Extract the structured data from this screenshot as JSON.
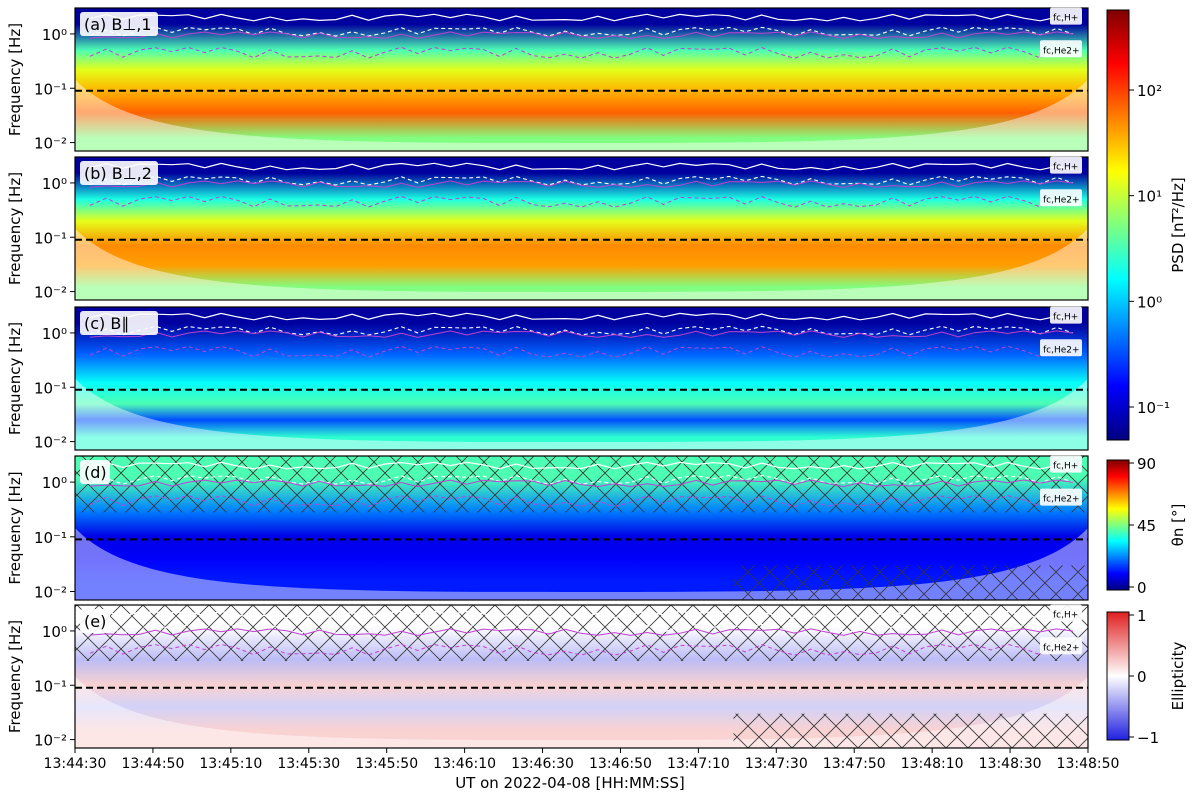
{
  "figure": {
    "xlabel": "UT on 2022-04-08 [HH:MM:SS]",
    "x_ticks": [
      "13:44:30",
      "13:44:50",
      "13:45:10",
      "13:45:30",
      "13:45:50",
      "13:46:10",
      "13:46:30",
      "13:46:50",
      "13:47:10",
      "13:47:30",
      "13:47:50",
      "13:48:10",
      "13:48:30",
      "13:48:50"
    ]
  },
  "chart_data": [
    {
      "type": "heatmap",
      "panel_label": "(a)",
      "title": "B⊥,1",
      "ylabel": "Frequency [Hz]",
      "yscale": "log",
      "ylim": [
        0.007,
        3.0
      ],
      "y_ticks": [
        "10⁰",
        "10⁻¹",
        "10⁻²"
      ],
      "y_tick_values": [
        1.0,
        0.1,
        0.01
      ],
      "xlim": [
        "13:44:30",
        "13:48:50"
      ],
      "colormap": "jet",
      "reference_line_hz": 0.09,
      "annotations": [
        "fc,H+",
        "fc,He2+"
      ],
      "intensity_bands": [
        {
          "f": 1.5,
          "v": 0.03
        },
        {
          "f": 0.5,
          "v": 0.45
        },
        {
          "f": 0.22,
          "v": 0.6
        },
        {
          "f": 0.09,
          "v": 0.7
        },
        {
          "f": 0.035,
          "v": 0.78
        },
        {
          "f": 0.012,
          "v": 0.5
        }
      ]
    },
    {
      "type": "heatmap",
      "panel_label": "(b)",
      "title": "B⊥,2",
      "ylabel": "Frequency [Hz]",
      "yscale": "log",
      "ylim": [
        0.007,
        3.0
      ],
      "y_ticks": [
        "10⁰",
        "10⁻¹",
        "10⁻²"
      ],
      "y_tick_values": [
        1.0,
        0.1,
        0.01
      ],
      "xlim": [
        "13:44:30",
        "13:48:50"
      ],
      "colormap": "jet",
      "reference_line_hz": 0.09,
      "annotations": [
        "fc,H+",
        "fc,He2+"
      ],
      "intensity_bands": [
        {
          "f": 1.5,
          "v": 0.03
        },
        {
          "f": 0.5,
          "v": 0.4
        },
        {
          "f": 0.2,
          "v": 0.6
        },
        {
          "f": 0.07,
          "v": 0.74
        },
        {
          "f": 0.03,
          "v": 0.72
        },
        {
          "f": 0.012,
          "v": 0.5
        }
      ]
    },
    {
      "type": "heatmap",
      "panel_label": "(c)",
      "title": "B∥",
      "ylabel": "Frequency [Hz]",
      "yscale": "log",
      "ylim": [
        0.007,
        3.0
      ],
      "y_ticks": [
        "10⁰",
        "10⁻¹",
        "10⁻²"
      ],
      "y_tick_values": [
        1.0,
        0.1,
        0.01
      ],
      "xlim": [
        "13:44:30",
        "13:48:50"
      ],
      "colormap": "jet",
      "reference_line_hz": 0.09,
      "annotations": [
        "fc,H+",
        "fc,He2+"
      ],
      "intensity_bands": [
        {
          "f": 1.5,
          "v": 0.03
        },
        {
          "f": 0.4,
          "v": 0.22
        },
        {
          "f": 0.12,
          "v": 0.38
        },
        {
          "f": 0.05,
          "v": 0.45
        },
        {
          "f": 0.025,
          "v": 0.2
        },
        {
          "f": 0.012,
          "v": 0.42
        }
      ]
    },
    {
      "type": "heatmap",
      "panel_label": "(d)",
      "ylabel": "Frequency [Hz]",
      "yscale": "log",
      "ylim": [
        0.007,
        3.0
      ],
      "y_ticks": [
        "10⁰",
        "10⁻¹",
        "10⁻²"
      ],
      "y_tick_values": [
        1.0,
        0.1,
        0.01
      ],
      "xlim": [
        "13:44:30",
        "13:48:50"
      ],
      "colormap": "jet",
      "reference_line_hz": 0.09,
      "annotations": [
        "fc,H+",
        "fc,He2+"
      ],
      "hatched_regions": true,
      "intensity_bands": [
        {
          "f": 1.2,
          "v": 0.45
        },
        {
          "f": 0.3,
          "v": 0.25
        },
        {
          "f": 0.1,
          "v": 0.1
        },
        {
          "f": 0.04,
          "v": 0.12
        },
        {
          "f": 0.015,
          "v": 0.15
        }
      ]
    },
    {
      "type": "heatmap",
      "panel_label": "(e)",
      "ylabel": "Frequency [Hz]",
      "yscale": "log",
      "ylim": [
        0.007,
        3.0
      ],
      "y_ticks": [
        "10⁰",
        "10⁻¹",
        "10⁻²"
      ],
      "y_tick_values": [
        1.0,
        0.1,
        0.01
      ],
      "xlim": [
        "13:44:30",
        "13:48:50"
      ],
      "colormap": "bwr",
      "reference_line_hz": 0.09,
      "annotations": [
        "fc,H+",
        "fc,He2+"
      ],
      "hatched_regions": true,
      "intensity_bands": [
        {
          "f": 1.2,
          "v": 0.5
        },
        {
          "f": 0.3,
          "v": 0.35
        },
        {
          "f": 0.1,
          "v": 0.6
        },
        {
          "f": 0.04,
          "v": 0.4
        },
        {
          "f": 0.015,
          "v": 0.6
        }
      ]
    }
  ],
  "colorbars": [
    {
      "label": "PSD [nT²/Hz]",
      "colormap": "jet",
      "scale": "log",
      "ticks": [
        "10²",
        "10¹",
        "10⁰",
        "10⁻¹"
      ]
    },
    {
      "label": "θn [°]",
      "colormap": "jet",
      "scale": "linear",
      "ticks": [
        "90",
        "45",
        "0"
      ]
    },
    {
      "label": "Ellipticity",
      "colormap": "bwr",
      "scale": "linear",
      "ticks": [
        "1",
        "0",
        "−1"
      ]
    }
  ]
}
